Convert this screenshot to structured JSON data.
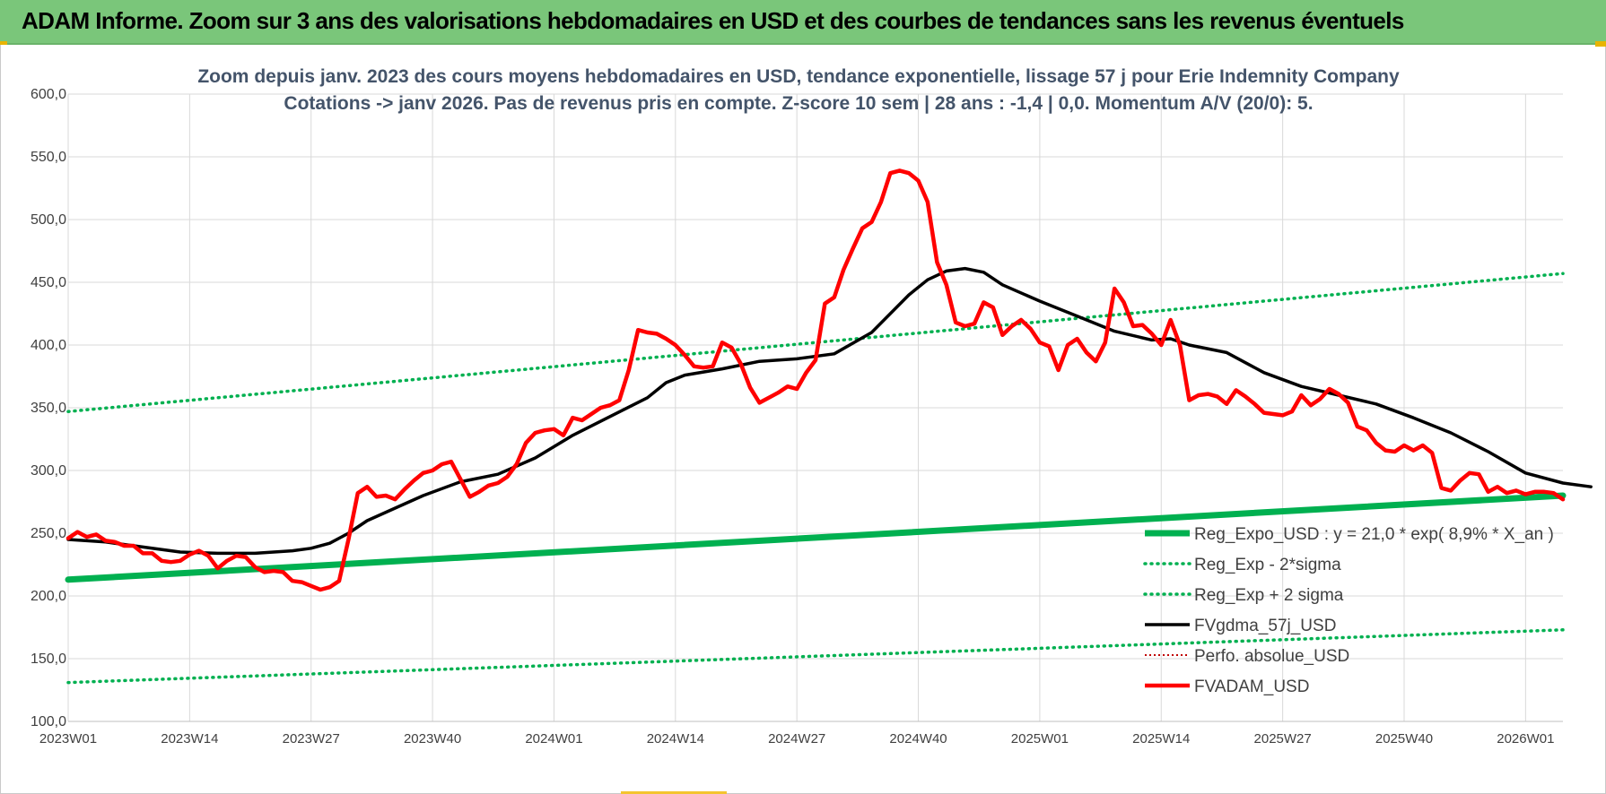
{
  "header": {
    "banner_title": "ADAM Informe. Zoom sur 3 ans des valorisations hebdomadaires en USD et des courbes de tendances sans les revenus éventuels"
  },
  "colors": {
    "banner_bg": "#7ac67a",
    "regression": "#00b050",
    "trend": "#000000",
    "price": "#ff0000",
    "perf": "#c00000",
    "title_text": "#44546a",
    "grid": "#d9d9d9"
  },
  "chart_data": {
    "type": "line",
    "title_line1": "Zoom depuis janv. 2023 des cours moyens hebdomadaires en USD, tendance exponentielle, lissage 57 j pour Erie Indemnity Company",
    "title_line2": "Cotations -> janv 2026. Pas de revenus pris en compte. Z-score 10 sem  | 28 ans : -1,4 | 0,0. Momentum A/V (20/0): 5.",
    "xlabel": "",
    "ylabel": "",
    "ylim": [
      100,
      600
    ],
    "grid": true,
    "legend_position": "bottom-right",
    "y_ticks": [
      "100,0",
      "150,0",
      "200,0",
      "250,0",
      "300,0",
      "350,0",
      "400,0",
      "450,0",
      "500,0",
      "550,0",
      "600,0"
    ],
    "x_ticks": [
      {
        "label": "2023W01",
        "week": 0
      },
      {
        "label": "2023W14",
        "week": 13
      },
      {
        "label": "2023W27",
        "week": 26
      },
      {
        "label": "2023W40",
        "week": 39
      },
      {
        "label": "2024W01",
        "week": 52
      },
      {
        "label": "2024W14",
        "week": 65
      },
      {
        "label": "2024W27",
        "week": 78
      },
      {
        "label": "2024W40",
        "week": 91
      },
      {
        "label": "2025W01",
        "week": 104
      },
      {
        "label": "2025W14",
        "week": 117
      },
      {
        "label": "2025W27",
        "week": 130
      },
      {
        "label": "2025W40",
        "week": 143
      },
      {
        "label": "2026W01",
        "week": 156
      }
    ],
    "x_range_weeks": [
      0,
      160
    ],
    "series": [
      {
        "name": "Reg_Expo_USD : y = 21,0 * exp( 8,9% *  X_an )",
        "style": "thick",
        "points": [
          [
            0,
            213
          ],
          [
            160,
            280
          ]
        ]
      },
      {
        "name": "Reg_Exp - 2*sigma",
        "style": "dotted",
        "points": [
          [
            0,
            131
          ],
          [
            160,
            173
          ]
        ]
      },
      {
        "name": "Reg_Exp + 2 sigma",
        "style": "dotted",
        "points": [
          [
            0,
            347
          ],
          [
            160,
            457
          ]
        ]
      },
      {
        "name": "FVgdma_57j_USD",
        "style": "solid",
        "points": [
          [
            0,
            245
          ],
          [
            4,
            243
          ],
          [
            8,
            239
          ],
          [
            12,
            235
          ],
          [
            16,
            234
          ],
          [
            20,
            234
          ],
          [
            24,
            236
          ],
          [
            26,
            238
          ],
          [
            28,
            242
          ],
          [
            30,
            250
          ],
          [
            32,
            260
          ],
          [
            35,
            270
          ],
          [
            38,
            280
          ],
          [
            42,
            291
          ],
          [
            46,
            297
          ],
          [
            50,
            310
          ],
          [
            54,
            328
          ],
          [
            58,
            343
          ],
          [
            62,
            358
          ],
          [
            64,
            370
          ],
          [
            66,
            376
          ],
          [
            70,
            381
          ],
          [
            74,
            387
          ],
          [
            78,
            389
          ],
          [
            82,
            393
          ],
          [
            86,
            410
          ],
          [
            88,
            425
          ],
          [
            90,
            440
          ],
          [
            92,
            452
          ],
          [
            94,
            459
          ],
          [
            96,
            461
          ],
          [
            98,
            458
          ],
          [
            100,
            448
          ],
          [
            104,
            435
          ],
          [
            108,
            423
          ],
          [
            112,
            411
          ],
          [
            116,
            404
          ],
          [
            118,
            405
          ],
          [
            120,
            400
          ],
          [
            124,
            394
          ],
          [
            128,
            378
          ],
          [
            132,
            367
          ],
          [
            136,
            360
          ],
          [
            140,
            353
          ],
          [
            144,
            342
          ],
          [
            148,
            330
          ],
          [
            152,
            315
          ],
          [
            156,
            298
          ],
          [
            160,
            290
          ],
          [
            163,
            287
          ]
        ]
      },
      {
        "name": "Perfo. absolue_USD",
        "style": "dotted-thin",
        "points": []
      },
      {
        "name": "FVADAM_USD",
        "style": "solid-thick",
        "points": [
          [
            0,
            246
          ],
          [
            1,
            251
          ],
          [
            2,
            247
          ],
          [
            3,
            249
          ],
          [
            4,
            244
          ],
          [
            5,
            243
          ],
          [
            6,
            240
          ],
          [
            7,
            240
          ],
          [
            8,
            234
          ],
          [
            9,
            234
          ],
          [
            10,
            228
          ],
          [
            11,
            227
          ],
          [
            12,
            228
          ],
          [
            13,
            233
          ],
          [
            14,
            236
          ],
          [
            15,
            232
          ],
          [
            16,
            222
          ],
          [
            17,
            228
          ],
          [
            18,
            232
          ],
          [
            19,
            231
          ],
          [
            20,
            223
          ],
          [
            21,
            219
          ],
          [
            22,
            220
          ],
          [
            23,
            219
          ],
          [
            24,
            212
          ],
          [
            25,
            211
          ],
          [
            26,
            208
          ],
          [
            27,
            205
          ],
          [
            28,
            207
          ],
          [
            29,
            212
          ],
          [
            30,
            245
          ],
          [
            31,
            282
          ],
          [
            32,
            287
          ],
          [
            33,
            279
          ],
          [
            34,
            280
          ],
          [
            35,
            277
          ],
          [
            36,
            285
          ],
          [
            37,
            292
          ],
          [
            38,
            298
          ],
          [
            39,
            300
          ],
          [
            40,
            305
          ],
          [
            41,
            307
          ],
          [
            42,
            293
          ],
          [
            43,
            279
          ],
          [
            44,
            283
          ],
          [
            45,
            288
          ],
          [
            46,
            290
          ],
          [
            47,
            295
          ],
          [
            48,
            305
          ],
          [
            49,
            322
          ],
          [
            50,
            330
          ],
          [
            51,
            332
          ],
          [
            52,
            333
          ],
          [
            53,
            328
          ],
          [
            54,
            342
          ],
          [
            55,
            340
          ],
          [
            56,
            345
          ],
          [
            57,
            350
          ],
          [
            58,
            352
          ],
          [
            59,
            356
          ],
          [
            60,
            380
          ],
          [
            61,
            412
          ],
          [
            62,
            410
          ],
          [
            63,
            409
          ],
          [
            64,
            405
          ],
          [
            65,
            400
          ],
          [
            66,
            392
          ],
          [
            67,
            383
          ],
          [
            68,
            382
          ],
          [
            69,
            383
          ],
          [
            70,
            402
          ],
          [
            71,
            398
          ],
          [
            72,
            385
          ],
          [
            73,
            366
          ],
          [
            74,
            354
          ],
          [
            75,
            358
          ],
          [
            76,
            362
          ],
          [
            77,
            367
          ],
          [
            78,
            365
          ],
          [
            79,
            378
          ],
          [
            80,
            388
          ],
          [
            81,
            433
          ],
          [
            82,
            438
          ],
          [
            83,
            460
          ],
          [
            84,
            477
          ],
          [
            85,
            493
          ],
          [
            86,
            498
          ],
          [
            87,
            514
          ],
          [
            88,
            537
          ],
          [
            89,
            539
          ],
          [
            90,
            537
          ],
          [
            91,
            531
          ],
          [
            92,
            514
          ],
          [
            93,
            466
          ],
          [
            94,
            448
          ],
          [
            95,
            418
          ],
          [
            96,
            415
          ],
          [
            97,
            417
          ],
          [
            98,
            434
          ],
          [
            99,
            430
          ],
          [
            100,
            408
          ],
          [
            101,
            415
          ],
          [
            102,
            420
          ],
          [
            103,
            413
          ],
          [
            104,
            402
          ],
          [
            105,
            399
          ],
          [
            106,
            380
          ],
          [
            107,
            400
          ],
          [
            108,
            405
          ],
          [
            109,
            394
          ],
          [
            110,
            387
          ],
          [
            111,
            402
          ],
          [
            112,
            445
          ],
          [
            113,
            434
          ],
          [
            114,
            415
          ],
          [
            115,
            416
          ],
          [
            116,
            409
          ],
          [
            117,
            400
          ],
          [
            118,
            420
          ],
          [
            119,
            400
          ],
          [
            120,
            356
          ],
          [
            121,
            360
          ],
          [
            122,
            361
          ],
          [
            123,
            359
          ],
          [
            124,
            353
          ],
          [
            125,
            364
          ],
          [
            126,
            359
          ],
          [
            127,
            353
          ],
          [
            128,
            346
          ],
          [
            129,
            345
          ],
          [
            130,
            344
          ],
          [
            131,
            347
          ],
          [
            132,
            360
          ],
          [
            133,
            352
          ],
          [
            134,
            357
          ],
          [
            135,
            365
          ],
          [
            136,
            361
          ],
          [
            137,
            354
          ],
          [
            138,
            335
          ],
          [
            139,
            332
          ],
          [
            140,
            322
          ],
          [
            141,
            316
          ],
          [
            142,
            315
          ],
          [
            143,
            320
          ],
          [
            144,
            316
          ],
          [
            145,
            320
          ],
          [
            146,
            314
          ],
          [
            147,
            286
          ],
          [
            148,
            284
          ],
          [
            149,
            292
          ],
          [
            150,
            298
          ],
          [
            151,
            297
          ],
          [
            152,
            283
          ],
          [
            153,
            287
          ],
          [
            154,
            282
          ],
          [
            155,
            284
          ],
          [
            156,
            281
          ],
          [
            157,
            283
          ],
          [
            158,
            283
          ],
          [
            159,
            282
          ],
          [
            160,
            277
          ]
        ]
      }
    ]
  }
}
